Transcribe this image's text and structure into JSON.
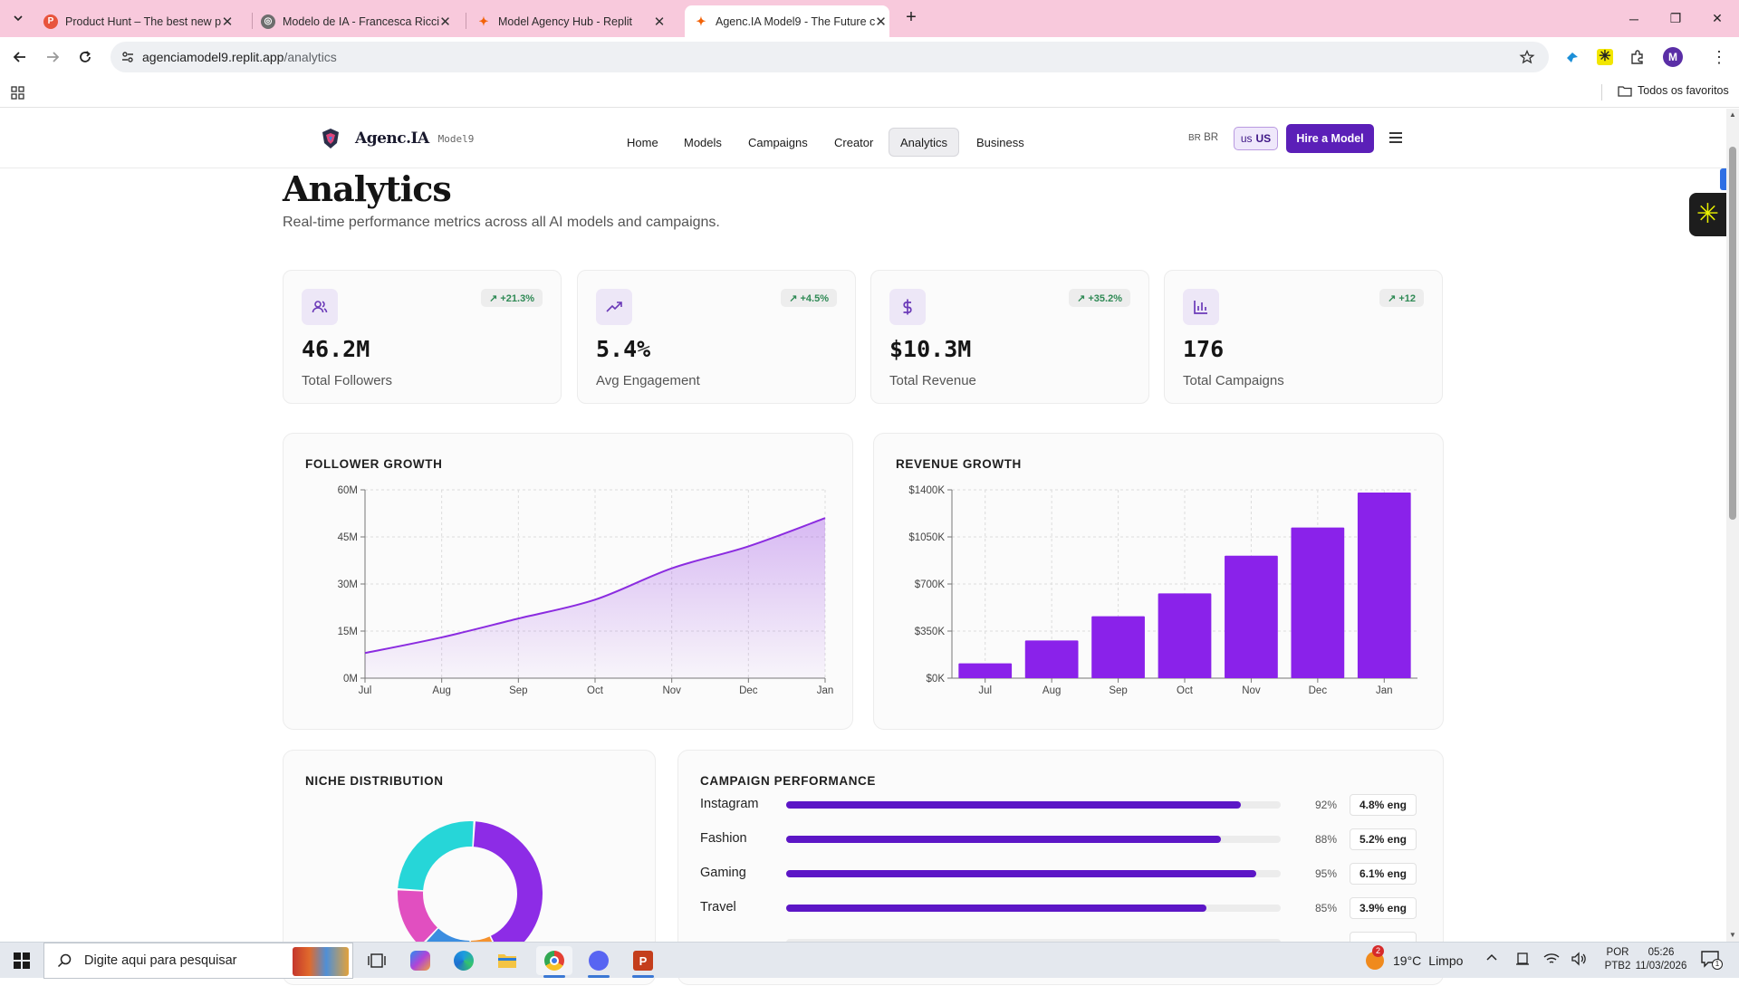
{
  "browser": {
    "tabs": [
      {
        "title": "Product Hunt – The best new p",
        "favicon": "producthunt-icon"
      },
      {
        "title": "Modelo de IA - Francesca Ricci",
        "favicon": "globe-icon"
      },
      {
        "title": "Model Agency Hub - Replit",
        "favicon": "replit-icon"
      },
      {
        "title": "Agenc.IA Model9 - The Future c",
        "favicon": "replit-icon",
        "active": true
      }
    ],
    "url_host": "agenciamodel9.replit.app",
    "url_path": "/analytics",
    "bookmarks_folder": "Todos os favoritos",
    "profile_initial": "M"
  },
  "site": {
    "logo_text": "Agenc.IA",
    "logo_sub": "Model9",
    "nav": [
      "Home",
      "Models",
      "Campaigns",
      "Creator",
      "Analytics",
      "Business"
    ],
    "active_nav": "Analytics",
    "lang_br_code": "BR",
    "lang_br": "BR",
    "lang_us_code": "us",
    "lang_us": "US",
    "cta": "Hire a Model"
  },
  "page": {
    "title": "Analytics",
    "subtitle": "Real-time performance metrics across all AI models and campaigns."
  },
  "kpis": [
    {
      "icon": "users-icon",
      "change": "↗ +21.3%",
      "value": "46.2M",
      "label": "Total Followers"
    },
    {
      "icon": "trending-up-icon",
      "change": "↗ +4.5%",
      "value": "5.4%",
      "label": "Avg Engagement"
    },
    {
      "icon": "dollar-icon",
      "change": "↗ +35.2%",
      "value": "$10.3M",
      "label": "Total Revenue"
    },
    {
      "icon": "bar-chart-icon",
      "change": "↗ +12",
      "value": "176",
      "label": "Total Campaigns"
    }
  ],
  "chart_data": [
    {
      "type": "area",
      "title": "FOLLOWER GROWTH",
      "categories": [
        "Jul",
        "Aug",
        "Sep",
        "Oct",
        "Nov",
        "Dec",
        "Jan"
      ],
      "values": [
        8,
        13,
        19,
        25,
        35,
        42,
        51
      ],
      "unit": "M",
      "ylim": [
        0,
        60
      ],
      "yticks": [
        "0M",
        "15M",
        "30M",
        "45M",
        "60M"
      ],
      "grid": true,
      "color": "#8b2ce0"
    },
    {
      "type": "bar",
      "title": "REVENUE GROWTH",
      "categories": [
        "Jul",
        "Aug",
        "Sep",
        "Oct",
        "Nov",
        "Dec",
        "Jan"
      ],
      "values": [
        110,
        280,
        460,
        630,
        910,
        1120,
        1380
      ],
      "unit": "K",
      "ylim": [
        0,
        1400
      ],
      "yticks": [
        "$0K",
        "$350K",
        "$700K",
        "$1050K",
        "$1400K"
      ],
      "grid": true,
      "color": "#8a22ea"
    },
    {
      "type": "pie",
      "title": "NICHE DISTRIBUTION",
      "values": [
        42,
        7,
        12,
        14,
        25
      ],
      "colors": [
        "#8d2ce6",
        "#f5922e",
        "#3b8de0",
        "#e14fc0",
        "#26d6d8"
      ]
    }
  ],
  "campaign_performance": {
    "title": "CAMPAIGN PERFORMANCE",
    "rows": [
      {
        "name": "Instagram",
        "pct": 92,
        "pct_label": "92%",
        "eng": "4.8% eng"
      },
      {
        "name": "Fashion",
        "pct": 88,
        "pct_label": "88%",
        "eng": "5.2% eng"
      },
      {
        "name": "Gaming",
        "pct": 95,
        "pct_label": "95%",
        "eng": "6.1% eng"
      },
      {
        "name": "Travel",
        "pct": 85,
        "pct_label": "85%",
        "eng": "3.9% eng"
      }
    ]
  },
  "taskbar": {
    "search_placeholder": "Digite aqui para pesquisar",
    "temperature": "19°C",
    "weather": "Limpo",
    "weather_badge": "2",
    "lang": "POR",
    "layout": "PTB2",
    "time": "05:26",
    "date": "11/03/2026",
    "notif_count": "1"
  }
}
